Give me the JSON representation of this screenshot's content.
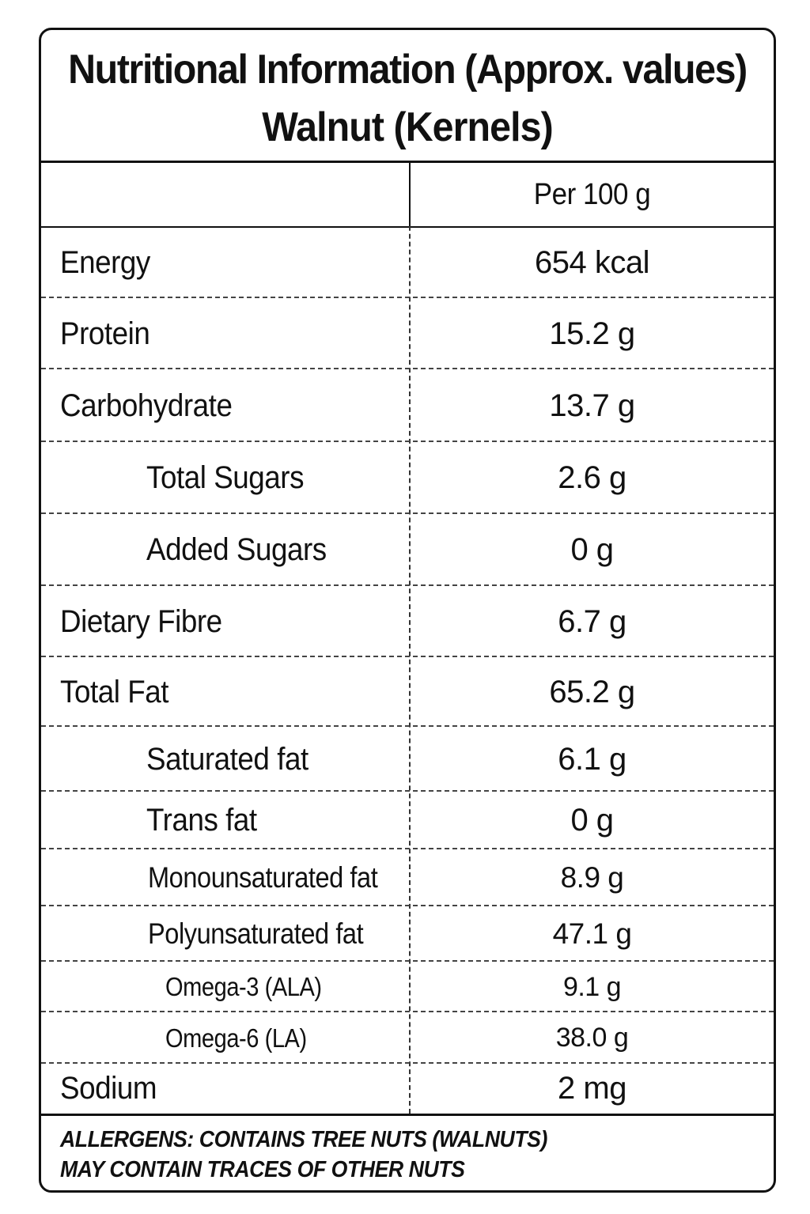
{
  "title": {
    "line1": "Nutritional Information (Approx. values)",
    "line2": "Walnut (Kernels)"
  },
  "table": {
    "column_header": "Per 100 g",
    "rows": [
      {
        "name": "Energy",
        "value": "654 kcal",
        "level": 0
      },
      {
        "name": "Protein",
        "value": "15.2 g",
        "level": 0
      },
      {
        "name": "Carbohydrate",
        "value": "13.7 g",
        "level": 0
      },
      {
        "name": "Total Sugars",
        "value": "2.6 g",
        "level": 1
      },
      {
        "name": "Added Sugars",
        "value": "0 g",
        "level": 1
      },
      {
        "name": "Dietary Fibre",
        "value": "6.7 g",
        "level": 0
      },
      {
        "name": "Total Fat",
        "value": "65.2 g",
        "level": 0
      },
      {
        "name": "Saturated fat",
        "value": "6.1 g",
        "level": 1
      },
      {
        "name": "Trans fat",
        "value": "0 g",
        "level": 1
      },
      {
        "name": "Monounsaturated fat",
        "value": "8.9 g",
        "level": 1
      },
      {
        "name": "Polyunsaturated fat",
        "value": "47.1 g",
        "level": 1
      },
      {
        "name": "Omega-3 (ALA)",
        "value": "9.1 g",
        "level": 2
      },
      {
        "name": "Omega-6 (LA)",
        "value": "38.0 g",
        "level": 2
      },
      {
        "name": "Sodium",
        "value": "2 mg",
        "level": 0
      }
    ]
  },
  "allergens": {
    "line1": "ALLERGENS: CONTAINS TREE NUTS (WALNUTS)",
    "line2": "MAY CONTAIN TRACES OF OTHER NUTS"
  }
}
